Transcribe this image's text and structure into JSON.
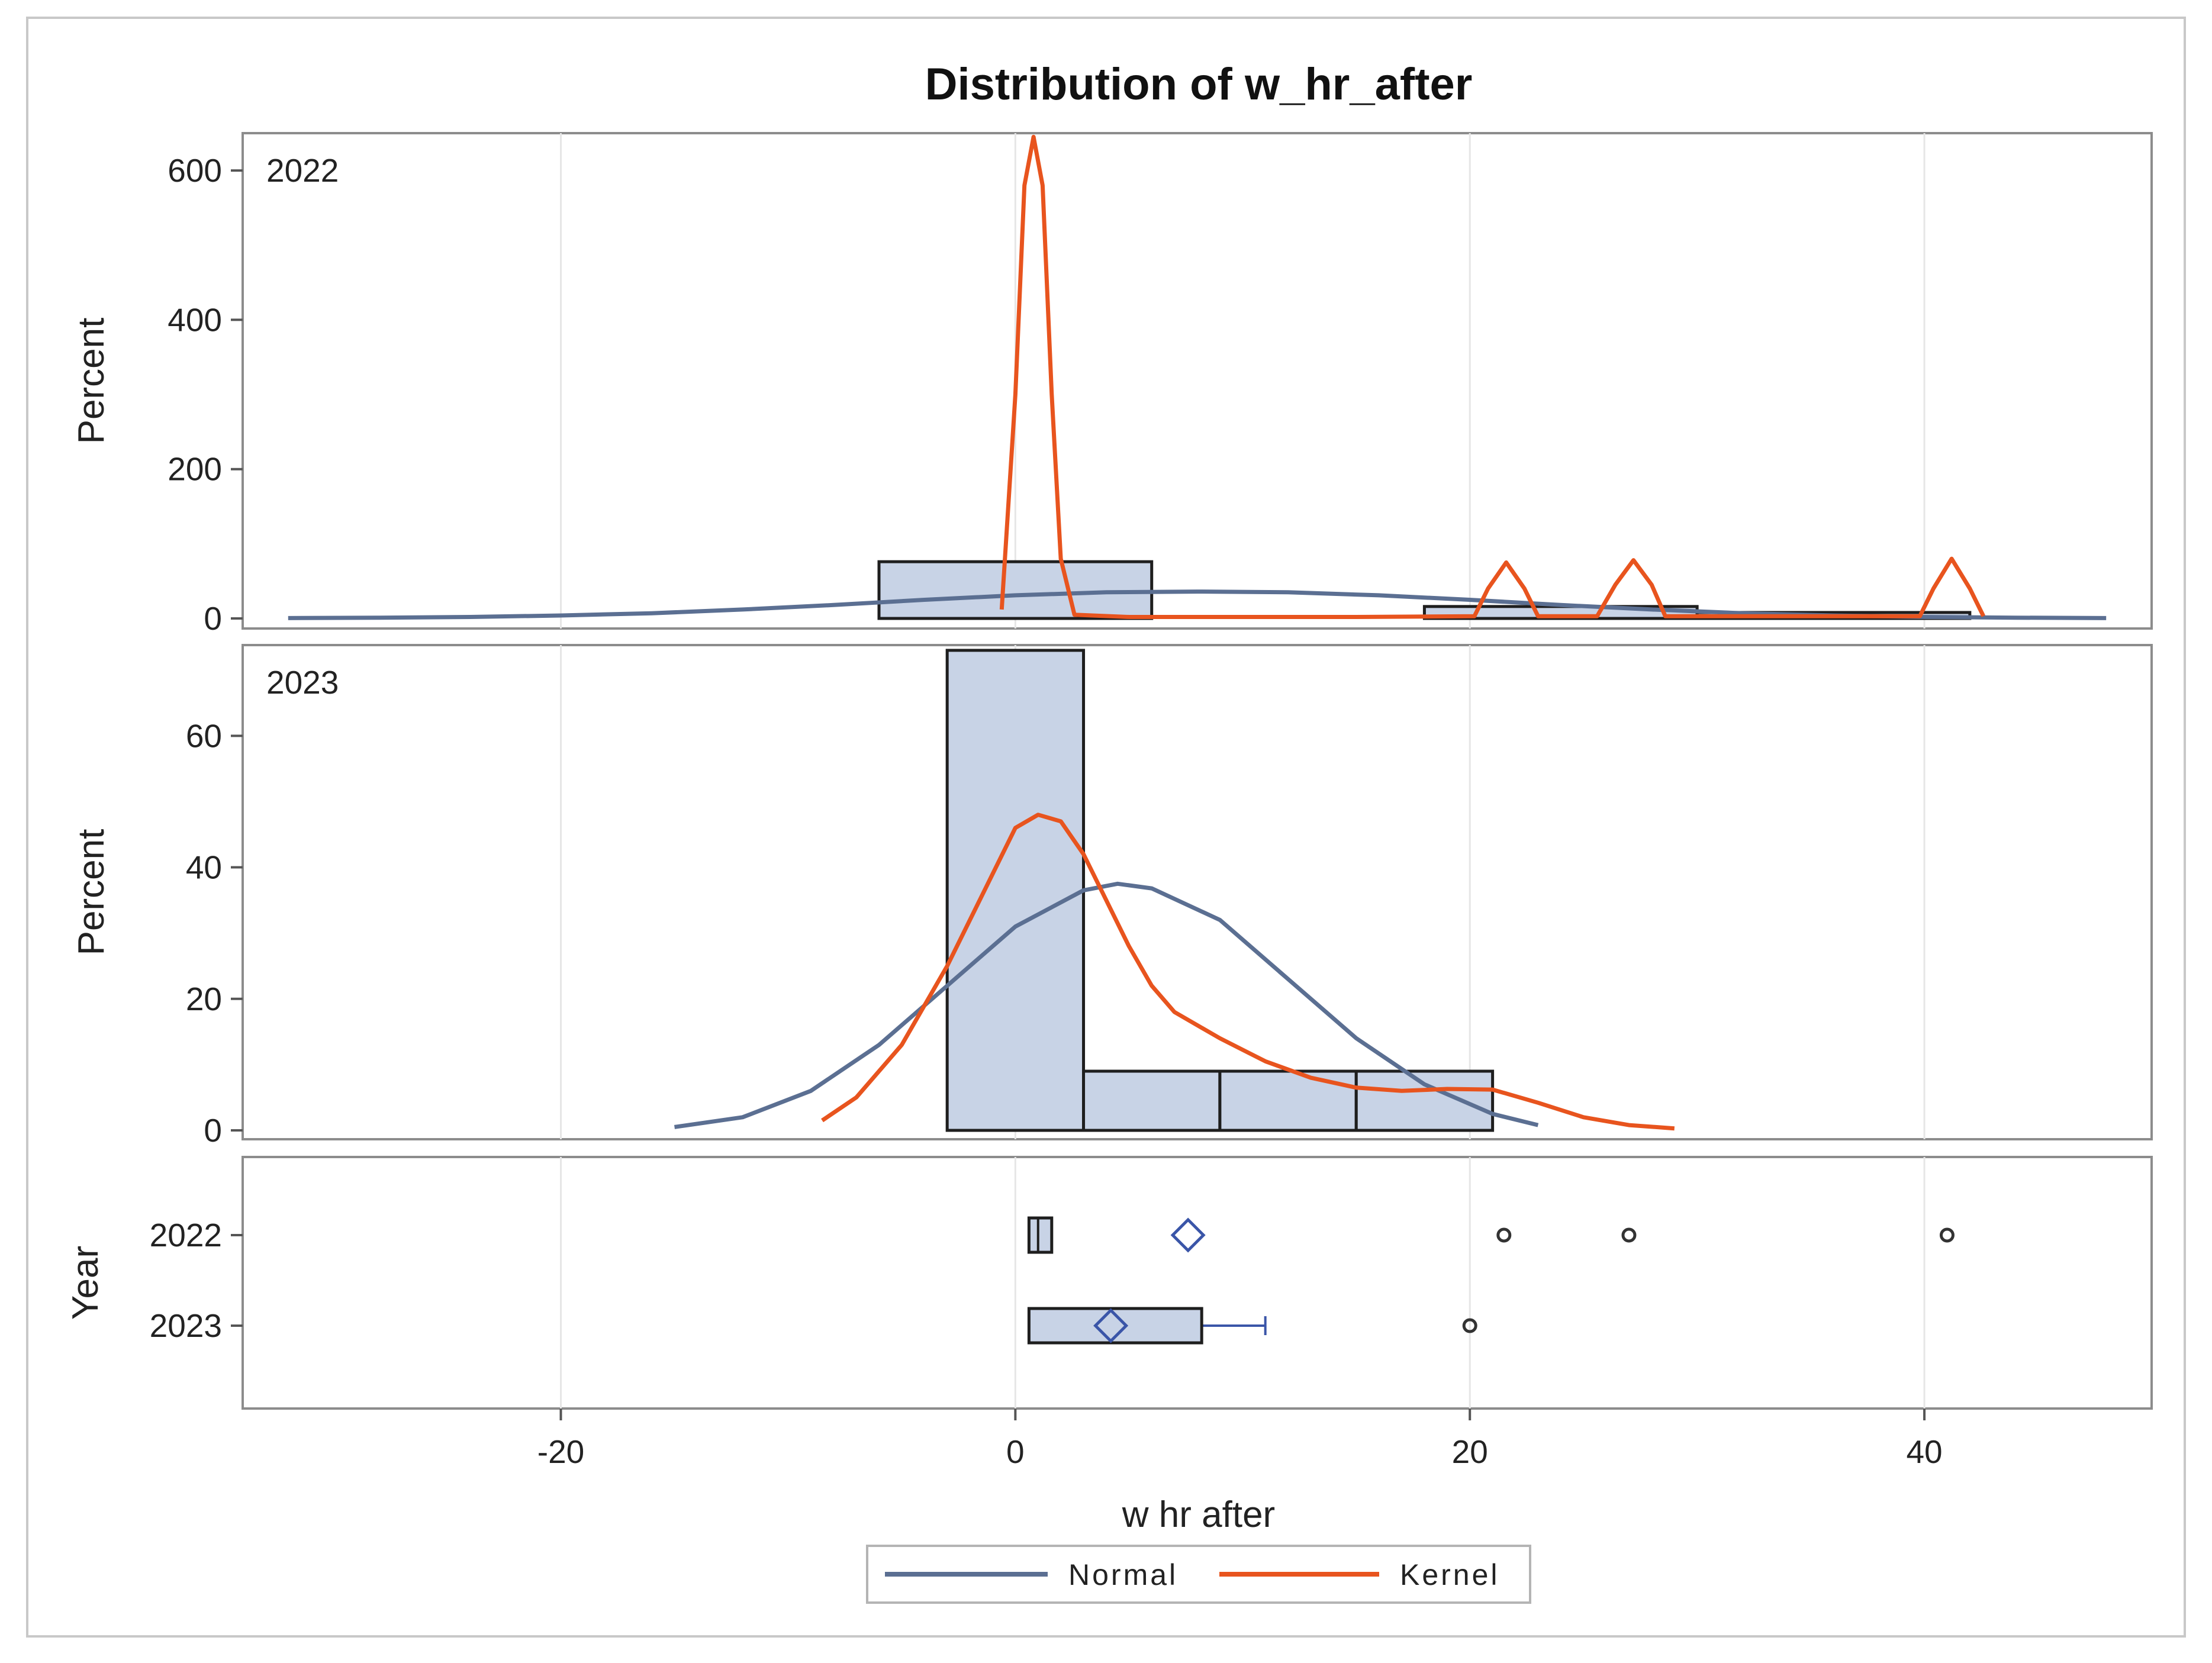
{
  "chart_data": {
    "type": "histogram",
    "title": "Distribution of w_hr_after",
    "xlabel": "w hr after",
    "xlim": [
      -34,
      50
    ],
    "xticks": [
      -20,
      0,
      20,
      40
    ],
    "colors": {
      "bar_fill": "#c8d3e6",
      "bar_edge": "#1e1e1e",
      "normal": "#5b6f92",
      "kernel": "#e8541e",
      "mean_marker": "#3a55a8"
    },
    "legend": {
      "position": "bottom",
      "entries": [
        {
          "name": "Normal",
          "color": "#5b6f92"
        },
        {
          "name": "Kernel",
          "color": "#e8541e"
        }
      ]
    },
    "panels": [
      {
        "group": "2022",
        "ylabel": "Percent",
        "ylim": [
          0,
          650
        ],
        "yticks": [
          0,
          200,
          400,
          600
        ],
        "bins": [
          {
            "x0": -6,
            "x1": 6,
            "value": 76
          },
          {
            "x0": 18,
            "x1": 30,
            "value": 16
          },
          {
            "x0": 30,
            "x1": 42,
            "value": 8
          }
        ],
        "normal": {
          "x": [
            -32,
            -28,
            -24,
            -20,
            -16,
            -12,
            -8,
            -4,
            0,
            4,
            8,
            12,
            16,
            20,
            24,
            28,
            32,
            36,
            40,
            44,
            48
          ],
          "y": [
            0.5,
            1,
            2,
            4,
            7,
            12,
            18,
            25,
            31,
            35,
            36,
            35,
            31,
            25,
            18,
            12,
            7,
            4,
            2,
            1,
            0.5
          ]
        },
        "kernel": {
          "x": [
            -0.6,
            0.0,
            0.4,
            0.8,
            1.2,
            1.6,
            2.0,
            2.6,
            5,
            10,
            15,
            20.2,
            20.8,
            21.6,
            22.4,
            23.0,
            24,
            25.6,
            26.4,
            27.2,
            28.0,
            28.6,
            30,
            35,
            39.8,
            40.4,
            41.2,
            42.0,
            42.6
          ],
          "y": [
            12,
            300,
            580,
            645,
            580,
            300,
            80,
            5,
            2,
            2,
            2,
            3,
            40,
            75,
            40,
            3,
            3,
            3,
            45,
            78,
            45,
            3,
            3,
            3,
            3,
            40,
            80,
            40,
            3
          ]
        }
      },
      {
        "group": "2023",
        "ylabel": "Percent",
        "ylim": [
          0,
          72
        ],
        "yticks": [
          0,
          20,
          40,
          60
        ],
        "bins": [
          {
            "x0": -3,
            "x1": 3,
            "value": 73
          },
          {
            "x0": 3,
            "x1": 9,
            "value": 9
          },
          {
            "x0": 9,
            "x1": 15,
            "value": 9
          },
          {
            "x0": 15,
            "x1": 21,
            "value": 9
          }
        ],
        "normal": {
          "x": [
            -15,
            -12,
            -9,
            -6,
            -3,
            0,
            3,
            4.5,
            6,
            9,
            12,
            15,
            18,
            21,
            23
          ],
          "y": [
            0.5,
            2,
            6,
            13,
            22,
            31,
            36.5,
            37.5,
            36.8,
            32,
            23,
            14,
            7,
            2.5,
            0.8
          ]
        },
        "kernel": {
          "x": [
            -8.5,
            -7,
            -5,
            -3,
            -1,
            0,
            1,
            2,
            3,
            4,
            5,
            6,
            7,
            9,
            11,
            13,
            15,
            17,
            19,
            21,
            23,
            25,
            27,
            29
          ],
          "y": [
            1.5,
            5,
            13,
            25,
            39,
            46,
            48,
            47,
            42,
            35,
            28,
            22,
            18,
            14,
            10.5,
            8,
            6.5,
            6,
            6.3,
            6.2,
            4.2,
            2,
            0.8,
            0.3
          ]
        }
      }
    ],
    "boxplot": {
      "ylabel": "Year",
      "categories": [
        "2022",
        "2023"
      ],
      "boxes": [
        {
          "group": "2022",
          "q1": 0.6,
          "median": 1.0,
          "q3": 1.6,
          "whisker_low": 0.6,
          "whisker_high": 1.6,
          "mean": 7.6,
          "outliers": [
            21.5,
            27.0,
            41.0
          ]
        },
        {
          "group": "2023",
          "q1": 0.6,
          "median": 0.6,
          "q3": 8.2,
          "whisker_low": 0.6,
          "whisker_high": 11.0,
          "mean": 4.2,
          "outliers": [
            20.0
          ]
        }
      ]
    }
  }
}
